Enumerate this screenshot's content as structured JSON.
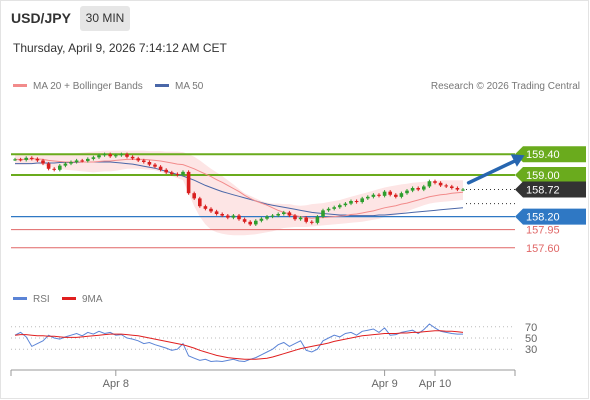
{
  "header": {
    "symbol": "USD/JPY",
    "timeframe": "30 MIN",
    "datetime": "Thursday, April 9, 2026 7:14:12 AM CET",
    "attribution": "Research © 2026 Trading Central"
  },
  "colors": {
    "candle_up": "#2e9e2e",
    "candle_down": "#d91f1f",
    "resistance": "#6aab1d",
    "pivot": "#2f78c4",
    "support": "#e06666",
    "bollinger_fill": "#fde5e5",
    "ma20": "#f28b8b",
    "ma50": "#4a67a8",
    "arrow": "#2766b0",
    "last_price": "#333333",
    "rsi": "#5b84d6",
    "rsi_ma9": "#e01f1f"
  },
  "chart_data": [
    {
      "type": "candlestick",
      "ylim": [
        157.25,
        159.75
      ],
      "indicators": [
        "MA 20 + Bollinger Bands",
        "MA 50"
      ],
      "levels": [
        {
          "label": "159.40",
          "value": 159.4,
          "role": "resistance"
        },
        {
          "label": "159.00",
          "value": 159.0,
          "role": "resistance"
        },
        {
          "label": "158.20",
          "value": 158.2,
          "role": "pivot"
        },
        {
          "label": "157.95",
          "value": 157.95,
          "role": "support"
        },
        {
          "label": "157.60",
          "value": 157.6,
          "role": "support"
        }
      ],
      "last_price": {
        "label": "158.72",
        "value": 158.72
      },
      "x_ticks": [
        {
          "label": "Apr 8",
          "index": 18
        },
        {
          "label": "Apr 9",
          "index": 66
        },
        {
          "label": "Apr 10",
          "index": 75
        }
      ],
      "closes": [
        159.3,
        159.29,
        159.33,
        159.31,
        159.28,
        159.22,
        159.12,
        159.1,
        159.18,
        159.22,
        159.25,
        159.28,
        159.27,
        159.31,
        159.34,
        159.38,
        159.4,
        159.36,
        159.38,
        159.4,
        159.35,
        159.32,
        159.28,
        159.25,
        159.2,
        159.16,
        159.1,
        159.05,
        159.02,
        159.0,
        159.06,
        158.65,
        158.55,
        158.4,
        158.35,
        158.3,
        158.25,
        158.22,
        158.18,
        158.22,
        158.15,
        158.1,
        158.05,
        158.12,
        158.16,
        158.2,
        158.22,
        158.25,
        158.28,
        158.22,
        158.15,
        158.18,
        158.1,
        158.08,
        158.2,
        158.32,
        158.35,
        158.38,
        158.42,
        158.45,
        158.5,
        158.48,
        158.55,
        158.58,
        158.62,
        158.6,
        158.68,
        158.62,
        158.58,
        158.65,
        158.7,
        158.75,
        158.72,
        158.78,
        158.88,
        158.85,
        158.8,
        158.78,
        158.75,
        158.72,
        158.72
      ],
      "ma20": [
        159.3,
        159.3,
        159.3,
        159.31,
        159.31,
        159.3,
        159.28,
        159.27,
        159.26,
        159.25,
        159.25,
        159.25,
        159.25,
        159.25,
        159.25,
        159.26,
        159.27,
        159.27,
        159.28,
        159.29,
        159.3,
        159.3,
        159.3,
        159.3,
        159.29,
        159.28,
        159.27,
        159.25,
        159.23,
        159.21,
        159.2,
        159.16,
        159.12,
        159.07,
        159.02,
        158.97,
        158.91,
        158.86,
        158.8,
        158.74,
        158.68,
        158.61,
        158.55,
        158.5,
        158.46,
        158.42,
        158.37,
        158.32,
        158.28,
        158.25,
        158.22,
        158.2,
        158.18,
        158.17,
        158.18,
        158.18,
        158.19,
        158.2,
        158.21,
        158.22,
        158.24,
        158.25,
        158.27,
        158.29,
        158.31,
        158.34,
        158.37,
        158.39,
        158.41,
        158.44,
        158.46,
        158.49,
        158.52,
        158.55,
        158.58,
        158.6,
        158.62,
        158.63,
        158.65,
        158.66,
        158.67
      ],
      "bb_upper": [
        159.4,
        159.4,
        159.4,
        159.41,
        159.41,
        159.4,
        159.4,
        159.4,
        159.4,
        159.4,
        159.41,
        159.42,
        159.43,
        159.44,
        159.45,
        159.46,
        159.47,
        159.47,
        159.47,
        159.47,
        159.47,
        159.47,
        159.47,
        159.47,
        159.46,
        159.46,
        159.46,
        159.45,
        159.45,
        159.45,
        159.44,
        159.4,
        159.35,
        159.28,
        159.2,
        159.12,
        159.05,
        158.98,
        158.9,
        158.82,
        158.73,
        158.65,
        158.6,
        158.55,
        158.5,
        158.47,
        158.45,
        158.45,
        158.44,
        158.44,
        158.42,
        158.41,
        158.42,
        158.44,
        158.45,
        158.46,
        158.48,
        158.5,
        158.52,
        158.55,
        158.58,
        158.61,
        158.64,
        158.67,
        158.7,
        158.73,
        158.76,
        158.78,
        158.8,
        158.82,
        158.83,
        158.85,
        158.86,
        158.87,
        158.88,
        158.89,
        158.9,
        158.9,
        158.9,
        158.9,
        158.9
      ],
      "bb_lower": [
        159.2,
        159.2,
        159.2,
        159.21,
        159.21,
        159.2,
        159.16,
        159.14,
        159.12,
        159.1,
        159.09,
        159.08,
        159.07,
        159.06,
        159.05,
        159.06,
        159.07,
        159.07,
        159.08,
        159.1,
        159.12,
        159.12,
        159.12,
        159.11,
        159.1,
        159.09,
        159.06,
        159.02,
        158.98,
        158.94,
        158.9,
        158.65,
        158.4,
        158.2,
        158.05,
        157.95,
        157.9,
        157.87,
        157.85,
        157.84,
        157.84,
        157.84,
        157.85,
        157.86,
        157.88,
        157.9,
        157.92,
        157.95,
        157.98,
        157.99,
        158.0,
        158.0,
        158.0,
        158.01,
        158.02,
        158.03,
        158.04,
        158.05,
        158.06,
        158.07,
        158.08,
        158.09,
        158.1,
        158.12,
        158.14,
        158.16,
        158.19,
        158.21,
        158.23,
        158.26,
        158.3,
        158.34,
        158.38,
        158.42,
        158.45,
        158.47,
        158.48,
        158.49,
        158.5,
        158.51,
        158.52
      ],
      "ma50": [
        159.22,
        159.22,
        159.22,
        159.22,
        159.23,
        159.23,
        159.23,
        159.23,
        159.24,
        159.24,
        159.24,
        159.24,
        159.25,
        159.25,
        159.25,
        159.25,
        159.25,
        159.25,
        159.24,
        159.23,
        159.22,
        159.21,
        159.19,
        159.17,
        159.15,
        159.13,
        159.1,
        159.07,
        159.04,
        159.01,
        158.98,
        158.94,
        158.9,
        158.85,
        158.8,
        158.76,
        158.72,
        158.68,
        158.65,
        158.62,
        158.59,
        158.56,
        158.53,
        158.5,
        158.47,
        158.44,
        158.42,
        158.4,
        158.38,
        158.36,
        158.34,
        158.32,
        158.3,
        158.28,
        158.27,
        158.26,
        158.25,
        158.24,
        158.23,
        158.23,
        158.22,
        158.22,
        158.22,
        158.22,
        158.22,
        158.23,
        158.23,
        158.24,
        158.25,
        158.26,
        158.27,
        158.28,
        158.29,
        158.3,
        158.31,
        158.32,
        158.33,
        158.34,
        158.35,
        158.36,
        158.37
      ],
      "forecast_arrow": {
        "from": {
          "index": 81,
          "value": 158.85
        },
        "to": {
          "index": 91,
          "value": 159.38
        }
      }
    },
    {
      "type": "line",
      "ylim": [
        0,
        100
      ],
      "y_ticks": [
        {
          "label": "70",
          "value": 70
        },
        {
          "label": "50",
          "value": 50
        },
        {
          "label": "30",
          "value": 30
        }
      ],
      "series": [
        {
          "name": "RSI",
          "values": [
            55,
            60,
            52,
            35,
            40,
            45,
            55,
            50,
            48,
            52,
            55,
            58,
            54,
            60,
            57,
            62,
            58,
            60,
            55,
            56,
            50,
            48,
            45,
            40,
            42,
            38,
            35,
            32,
            28,
            30,
            40,
            18,
            14,
            10,
            12,
            8,
            9,
            8,
            10,
            12,
            9,
            8,
            12,
            15,
            20,
            25,
            30,
            38,
            42,
            35,
            40,
            45,
            28,
            25,
            30,
            45,
            50,
            55,
            52,
            58,
            60,
            55,
            62,
            64,
            66,
            60,
            68,
            55,
            56,
            60,
            62,
            64,
            58,
            65,
            75,
            68,
            62,
            60,
            58,
            57,
            57
          ]
        },
        {
          "name": "9MA",
          "values": [
            55,
            56,
            56,
            55,
            54,
            54,
            53,
            53,
            52,
            51,
            51,
            51,
            52,
            53,
            54,
            55,
            56,
            57,
            57,
            57,
            56,
            55,
            54,
            52,
            50,
            48,
            46,
            44,
            42,
            40,
            38,
            35,
            32,
            28,
            25,
            22,
            19,
            17,
            15,
            14,
            13,
            12,
            12,
            12,
            13,
            14,
            16,
            19,
            22,
            25,
            28,
            31,
            33,
            35,
            37,
            39,
            41,
            44,
            46,
            48,
            50,
            52,
            54,
            55,
            56,
            57,
            58,
            58,
            58,
            59,
            59,
            60,
            60,
            61,
            62,
            63,
            63,
            62,
            62,
            61,
            60
          ]
        }
      ]
    }
  ]
}
